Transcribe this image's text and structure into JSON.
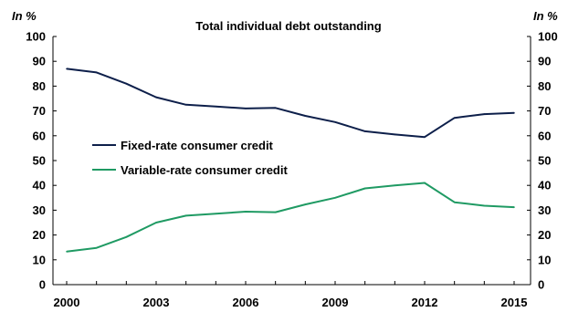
{
  "chart_data": {
    "type": "line",
    "title": "Total individual debt outstanding",
    "y_unit_left": "In %",
    "y_unit_right": "In %",
    "xlabel": "",
    "ylabel": "",
    "x": [
      2000,
      2001,
      2002,
      2003,
      2004,
      2005,
      2006,
      2007,
      2008,
      2009,
      2010,
      2011,
      2012,
      2013,
      2014,
      2015
    ],
    "x_ticks": [
      "2000",
      "2003",
      "2006",
      "2009",
      "2012",
      "2015"
    ],
    "y_ticks": [
      "0",
      "10",
      "20",
      "30",
      "40",
      "50",
      "60",
      "70",
      "80",
      "90",
      "100"
    ],
    "xlim": [
      2000,
      2015
    ],
    "ylim": [
      0,
      100
    ],
    "grid": false,
    "legend_position": "center-left",
    "series": [
      {
        "name": "Fixed-rate consumer credit",
        "color": "#0d1f4a",
        "values": [
          87,
          85.5,
          81,
          75.5,
          72.5,
          71.8,
          71,
          71.2,
          68,
          65.5,
          61.8,
          60.5,
          59.5,
          67.2,
          68.7,
          69.2
        ]
      },
      {
        "name": "Variable-rate consumer credit",
        "color": "#1f9a63",
        "values": [
          13.3,
          14.8,
          19.2,
          25,
          27.8,
          28.6,
          29.4,
          29.2,
          32.3,
          35,
          38.8,
          40,
          41,
          33.2,
          31.8,
          31.2
        ]
      }
    ]
  }
}
